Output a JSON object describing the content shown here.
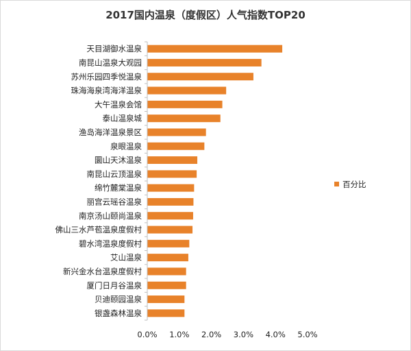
{
  "chart_data": {
    "type": "bar",
    "orientation": "horizontal",
    "title": "2017国内温泉（度假区）人气指数TOP20",
    "categories": [
      "天目湖御水温泉",
      "南昆山温泉大观园",
      "苏州乐园四季悦温泉",
      "珠海海泉湾海洋温泉",
      "大午温泉会馆",
      "泰山温泉城",
      "渔岛海洋温泉景区",
      "泉眼温泉",
      "圜山天沐温泉",
      "南昆山云顶温泉",
      "绵竹麓棠温泉",
      "丽宫云瑶谷温泉",
      "南京汤山颐尚温泉",
      "佛山三水芦苞温泉度假村",
      "碧水湾温泉度假村",
      "艾山温泉",
      "新兴金水台温泉度假村",
      "厦门日月谷温泉",
      "贝迪颐园温泉",
      "银盏森林温泉"
    ],
    "series": [
      {
        "name": "百分比",
        "values": [
          4.2,
          3.55,
          3.3,
          2.45,
          2.33,
          2.27,
          1.82,
          1.77,
          1.55,
          1.53,
          1.45,
          1.43,
          1.42,
          1.4,
          1.3,
          1.27,
          1.2,
          1.2,
          1.15,
          1.15
        ]
      }
    ],
    "xlim": [
      0,
      5
    ],
    "xticks": [
      "0.0%",
      "1.0%",
      "2.0%",
      "3.0%",
      "4.0%",
      "5.0%"
    ],
    "legend": "right",
    "grid": false,
    "bar_color": "#E8822A"
  }
}
